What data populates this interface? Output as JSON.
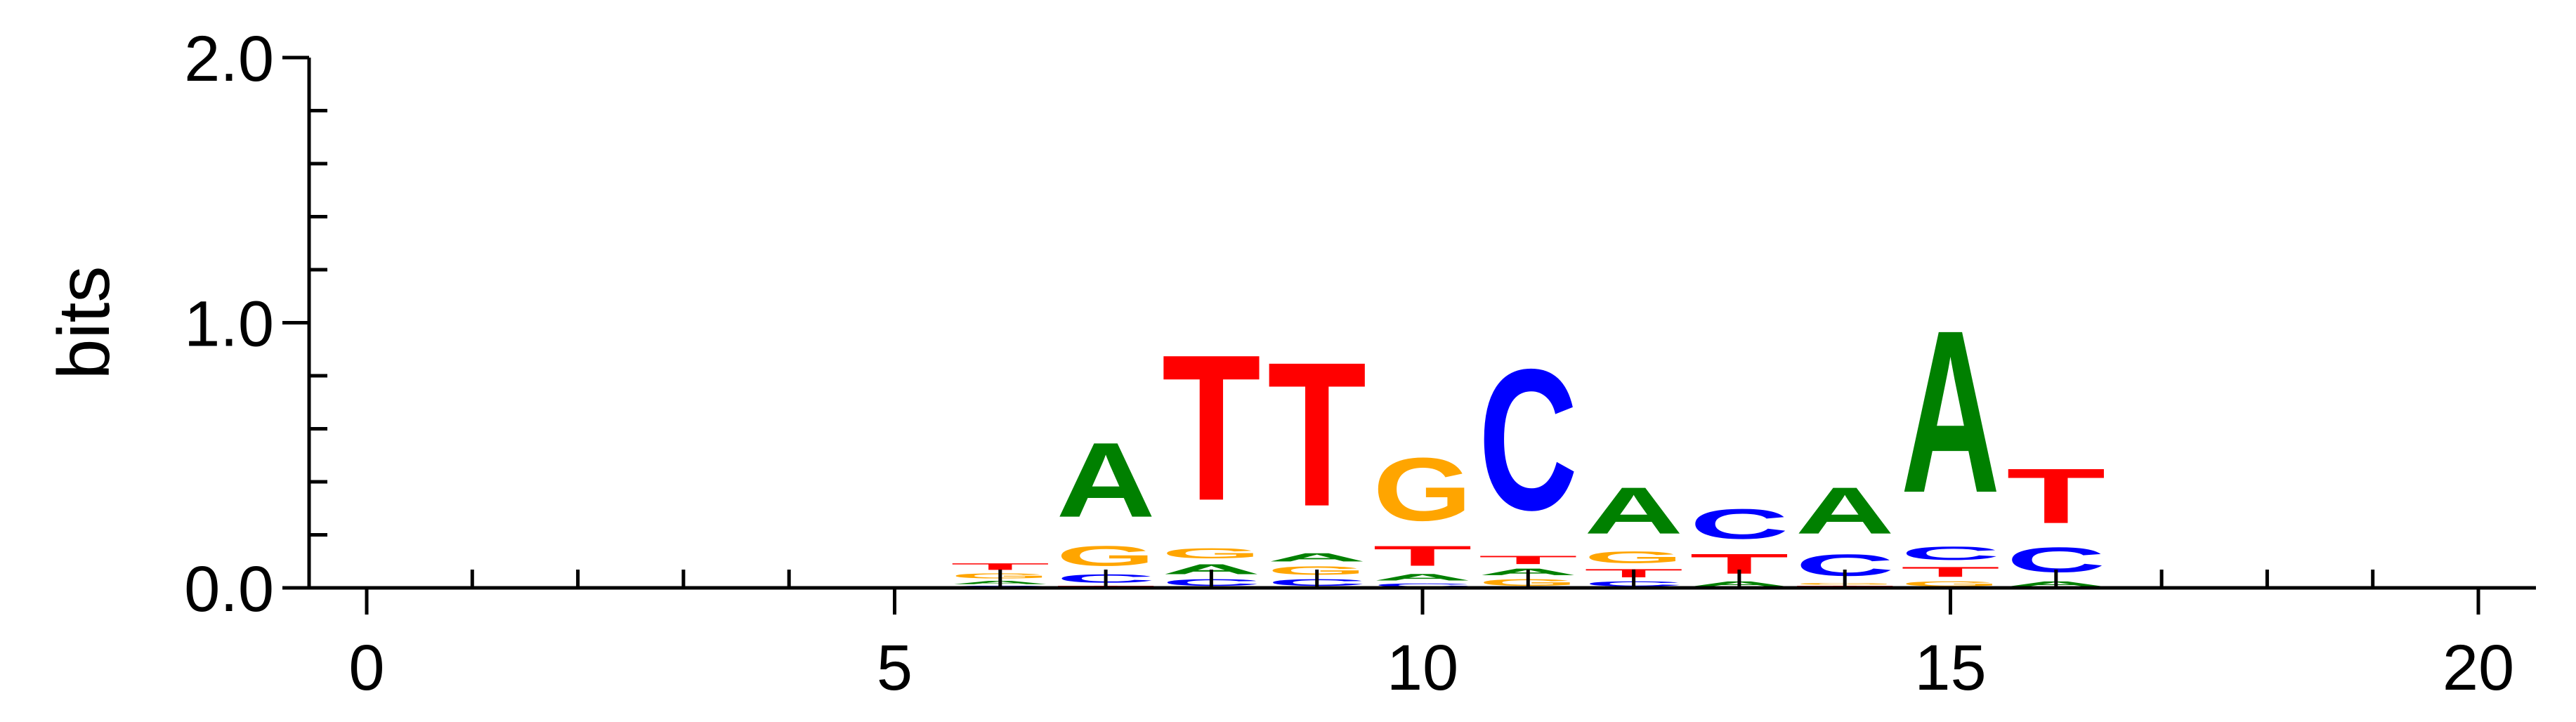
{
  "chart_data": {
    "type": "sequence-logo",
    "ylabel": "bits",
    "ylim": [
      0,
      2.0
    ],
    "xlim": [
      -0.5,
      20.5
    ],
    "x_ticks": [
      0,
      5,
      10,
      15,
      20
    ],
    "x_tick_labels": [
      "0",
      "5",
      "10",
      "15",
      "20"
    ],
    "y_ticks": [
      0.0,
      1.0,
      2.0
    ],
    "y_tick_labels": [
      "0.0",
      "1.0",
      "2.0"
    ],
    "colors": {
      "A": "#008000",
      "C": "#0000ff",
      "G": "#ffa500",
      "T": "#ff0000"
    },
    "positions": [
      {
        "x": 6,
        "letters": [
          {
            "base": "C",
            "bits": 0.01
          },
          {
            "base": "A",
            "bits": 0.02
          },
          {
            "base": "G",
            "bits": 0.03
          },
          {
            "base": "T",
            "bits": 0.04
          }
        ]
      },
      {
        "x": 7,
        "letters": [
          {
            "base": "T",
            "bits": 0.01
          },
          {
            "base": "C",
            "bits": 0.05
          },
          {
            "base": "G",
            "bits": 0.12
          },
          {
            "base": "A",
            "bits": 0.45
          }
        ]
      },
      {
        "x": 8,
        "letters": [
          {
            "base": "C",
            "bits": 0.04
          },
          {
            "base": "A",
            "bits": 0.06
          },
          {
            "base": "G",
            "bits": 0.06
          },
          {
            "base": "T",
            "bits": 0.88
          }
        ]
      },
      {
        "x": 9,
        "letters": [
          {
            "base": "C",
            "bits": 0.04
          },
          {
            "base": "G",
            "bits": 0.05
          },
          {
            "base": "A",
            "bits": 0.05
          },
          {
            "base": "T",
            "bits": 0.87
          }
        ]
      },
      {
        "x": 10,
        "letters": [
          {
            "base": "C",
            "bits": 0.02
          },
          {
            "base": "A",
            "bits": 0.04
          },
          {
            "base": "T",
            "bits": 0.12
          },
          {
            "base": "G",
            "bits": 0.38
          }
        ]
      },
      {
        "x": 11,
        "letters": [
          {
            "base": "G",
            "bits": 0.04
          },
          {
            "base": "A",
            "bits": 0.04
          },
          {
            "base": "T",
            "bits": 0.05
          },
          {
            "base": "C",
            "bits": 0.85
          }
        ]
      },
      {
        "x": 12,
        "letters": [
          {
            "base": "C",
            "bits": 0.03
          },
          {
            "base": "T",
            "bits": 0.05
          },
          {
            "base": "G",
            "bits": 0.07
          },
          {
            "base": "A",
            "bits": 0.28
          }
        ]
      },
      {
        "x": 13,
        "letters": [
          {
            "base": "A",
            "bits": 0.03
          },
          {
            "base": "T",
            "bits": 0.12
          },
          {
            "base": "C",
            "bits": 0.18
          }
        ]
      },
      {
        "x": 14,
        "letters": [
          {
            "base": "T",
            "bits": 0.01
          },
          {
            "base": "G",
            "bits": 0.01
          },
          {
            "base": "C",
            "bits": 0.13
          },
          {
            "base": "A",
            "bits": 0.28
          }
        ]
      },
      {
        "x": 15,
        "letters": [
          {
            "base": "G",
            "bits": 0.03
          },
          {
            "base": "T",
            "bits": 0.06
          },
          {
            "base": "C",
            "bits": 0.08
          },
          {
            "base": "A",
            "bits": 0.98
          }
        ]
      },
      {
        "x": 16,
        "letters": [
          {
            "base": "A",
            "bits": 0.03
          },
          {
            "base": "C",
            "bits": 0.15
          },
          {
            "base": "T",
            "bits": 0.33
          }
        ]
      }
    ]
  }
}
